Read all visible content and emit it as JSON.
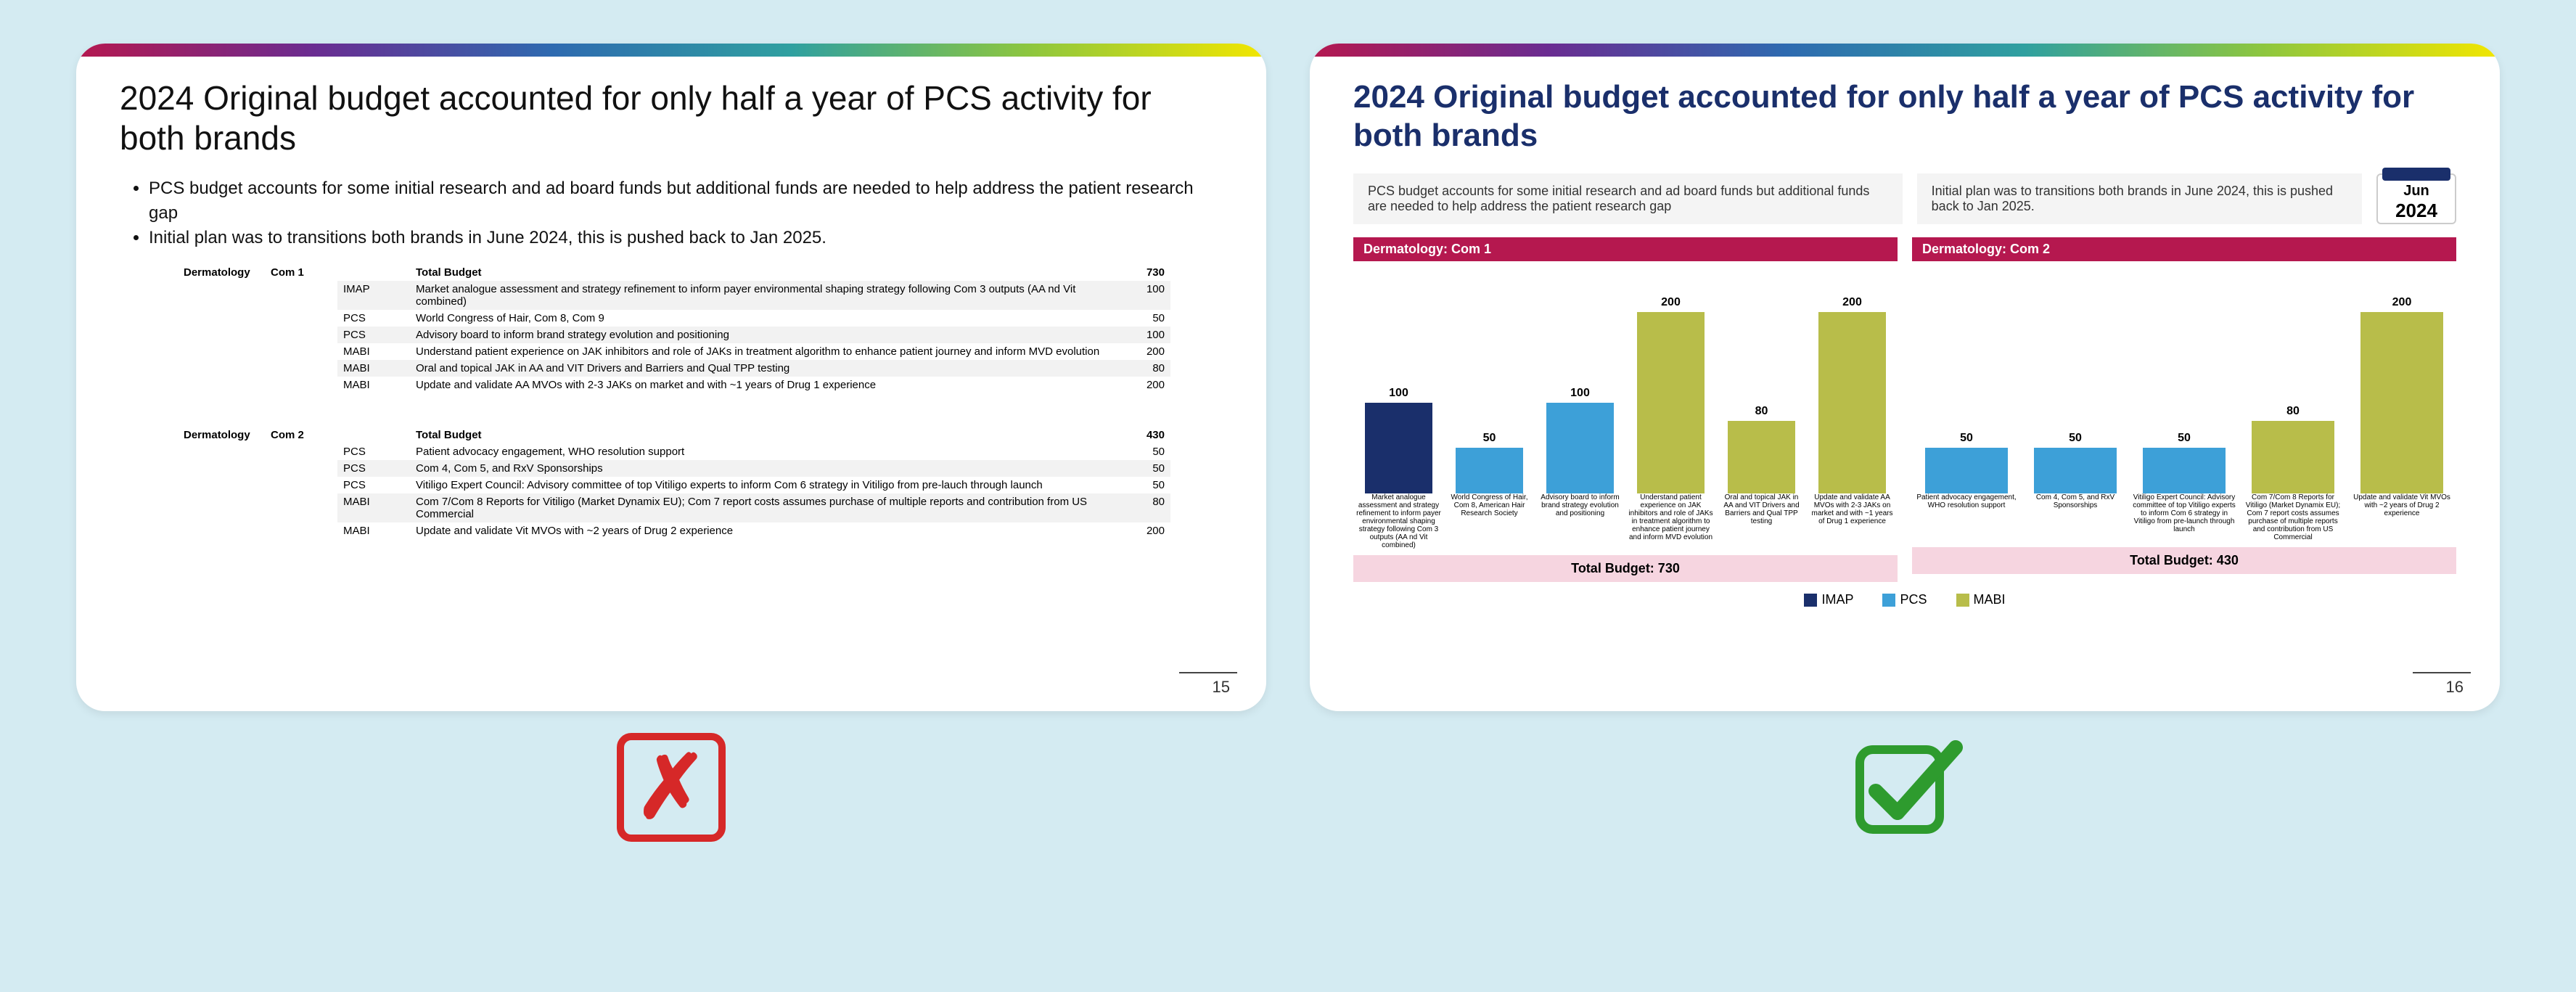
{
  "colors": {
    "imap": "#1a2f6b",
    "pcs": "#3da0d8",
    "mabi": "#b8bd4a",
    "section": "#b5184f",
    "total_bg": "#f6d5e0"
  },
  "slideA": {
    "title": "2024 Original budget accounted for only half a year of PCS activity for both brands",
    "bullets": [
      "PCS budget accounts for some initial research and ad board funds but additional funds are needed to help address the patient research gap",
      "Initial plan was to transitions both brands in June 2024, this is pushed back to Jan 2025."
    ],
    "page": "15",
    "groups": [
      {
        "derm": "Dermatology",
        "com": "Com 1",
        "total_label": "Total Budget",
        "total": "730",
        "rows": [
          {
            "cat": "IMAP",
            "desc": "Market analogue assessment and strategy refinement to inform payer environmental shaping strategy following Com 3 outputs (AA nd Vit combined)",
            "val": "100"
          },
          {
            "cat": "PCS",
            "desc": "World Congress of Hair, Com 8, Com 9",
            "val": "50"
          },
          {
            "cat": "PCS",
            "desc": "Advisory board to inform brand strategy evolution and positioning",
            "val": "100"
          },
          {
            "cat": "MABI",
            "desc": "Understand patient experience on JAK inhibitors and role of JAKs in treatment algorithm to enhance patient journey and inform MVD evolution",
            "val": "200"
          },
          {
            "cat": "MABI",
            "desc": "Oral and topical JAK in AA and VIT Drivers and Barriers and Qual TPP testing",
            "val": "80"
          },
          {
            "cat": "MABI",
            "desc": "Update and validate AA MVOs with 2-3 JAKs on market and with ~1 years of Drug 1 experience",
            "val": "200"
          }
        ]
      },
      {
        "derm": "Dermatology",
        "com": "Com 2",
        "total_label": "Total Budget",
        "total": "430",
        "rows": [
          {
            "cat": "PCS",
            "desc": "Patient advocacy engagement, WHO resolution support",
            "val": "50"
          },
          {
            "cat": "PCS",
            "desc": "Com 4, Com 5, and RxV Sponsorships",
            "val": "50"
          },
          {
            "cat": "PCS",
            "desc": "Vitiligo Expert Council: Advisory committee of top Vitiligo experts to inform Com 6 strategy in Vitiligo from pre-lauch through launch",
            "val": "50"
          },
          {
            "cat": "MABI",
            "desc": "Com 7/Com 8 Reports for Vitiligo (Market Dynamix EU);  Com 7 report costs assumes purchase of multiple reports and contribution from US Commercial",
            "val": "80"
          },
          {
            "cat": "MABI",
            "desc": "Update and validate Vit MVOs with ~2 years of Drug 2 experience",
            "val": "200"
          }
        ]
      }
    ]
  },
  "slideB": {
    "title": "2024 Original budget accounted for only half a year of PCS activity for both brands",
    "note1": "PCS budget accounts for some initial research and ad board funds but additional funds are needed to help address the patient research gap",
    "note2": "Initial plan was to transitions both brands in June 2024, this is pushed back to Jan 2025.",
    "cal_mon": "Jun",
    "cal_yr": "2024",
    "page": "16",
    "ymax": 200,
    "legend": [
      {
        "label": "IMAP",
        "color": "#1a2f6b"
      },
      {
        "label": "PCS",
        "color": "#3da0d8"
      },
      {
        "label": "MABI",
        "color": "#b8bd4a"
      }
    ],
    "sections": [
      {
        "head": "Dermatology: Com 1",
        "total": "Total Budget: 730",
        "bars": [
          {
            "val": 100,
            "color": "#1a2f6b",
            "label": "Market analogue assessment and strategy refinement to inform payer environmental shaping strategy following Com 3 outputs (AA nd Vit combined)"
          },
          {
            "val": 50,
            "color": "#3da0d8",
            "label": "World Congress of Hair, Com 8, American Hair Research Society"
          },
          {
            "val": 100,
            "color": "#3da0d8",
            "label": "Advisory board to inform brand strategy evolution and positioning"
          },
          {
            "val": 200,
            "color": "#b8bd4a",
            "label": "Understand patient experience on JAK inhibitors and role of JAKs in treatment algorithm to enhance patient journey and inform MVD evolution"
          },
          {
            "val": 80,
            "color": "#b8bd4a",
            "label": "Oral and topical JAK in AA and VIT Drivers and Barriers and Qual TPP testing"
          },
          {
            "val": 200,
            "color": "#b8bd4a",
            "label": "Update and validate AA MVOs with 2-3 JAKs on market and with ~1 years of Drug 1 experience"
          }
        ]
      },
      {
        "head": "Dermatology: Com 2",
        "total": "Total Budget: 430",
        "bars": [
          {
            "val": 50,
            "color": "#3da0d8",
            "label": "Patient advocacy engagement, WHO resolution support"
          },
          {
            "val": 50,
            "color": "#3da0d8",
            "label": "Com 4, Com 5, and RxV Sponsorships"
          },
          {
            "val": 50,
            "color": "#3da0d8",
            "label": "Vitiligo Expert Council: Advisory committee of top Vitiligo experts to inform Com 6 strategy in Vitiligo from pre-launch through launch"
          },
          {
            "val": 80,
            "color": "#b8bd4a",
            "label": "Com 7/Com 8 Reports for Vitiligo (Market Dynamix EU);  Com 7 report costs assumes purchase of multiple reports and contribution from US Commercial"
          },
          {
            "val": 200,
            "color": "#b8bd4a",
            "label": "Update and validate Vit MVOs with ~2 years of Drug 2 experience"
          }
        ]
      }
    ]
  }
}
